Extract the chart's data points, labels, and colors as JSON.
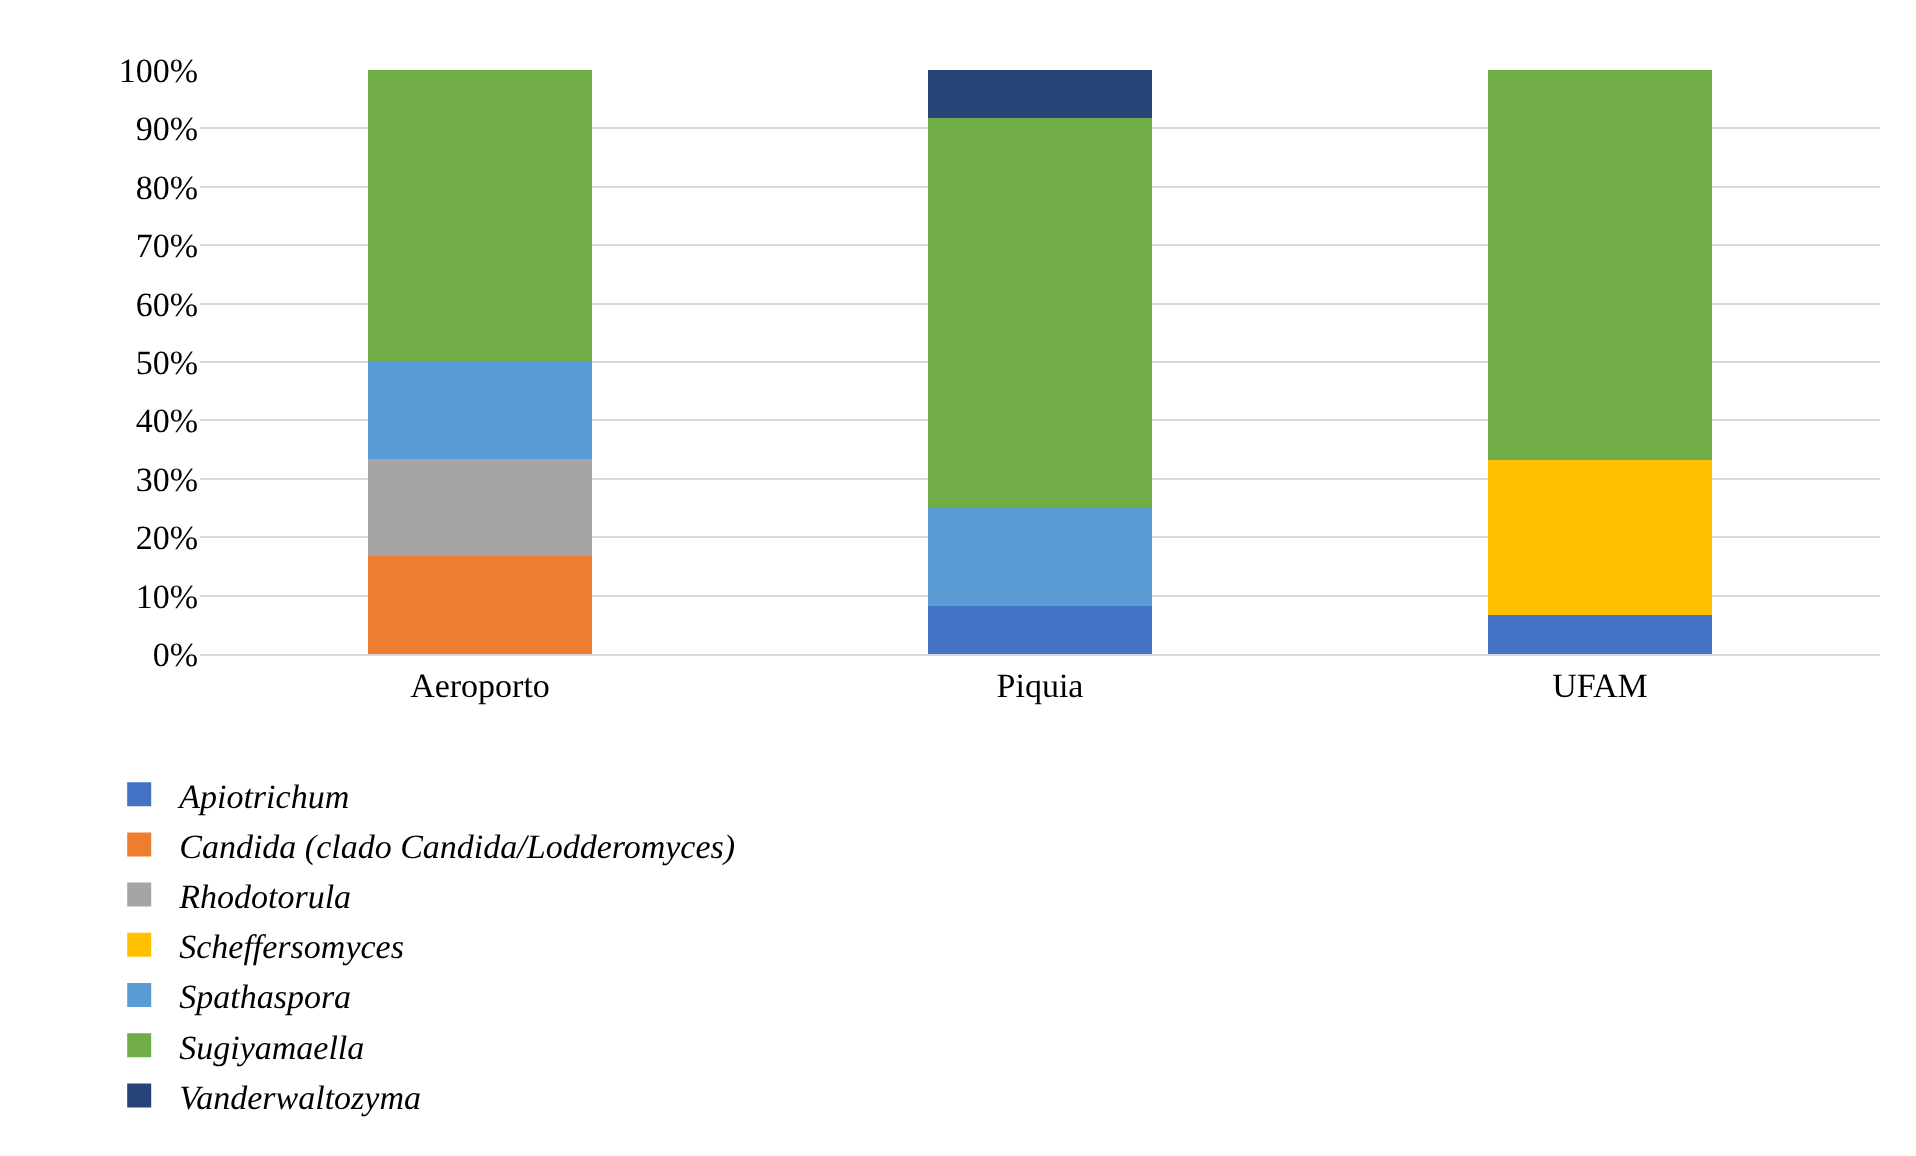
{
  "chart_data": {
    "type": "bar",
    "stacked": true,
    "categories": [
      "Aeroporto",
      "Piquia",
      "UFAM"
    ],
    "series": [
      {
        "name": "Apiotrichum",
        "color": "#4472c4",
        "values": [
          null,
          8.3,
          6.7
        ]
      },
      {
        "name": "Candida (clado Candida/Lodderomyces)",
        "color": "#ed7d31",
        "values": [
          16.7,
          null,
          null
        ]
      },
      {
        "name": "Rhodotorula",
        "color": "#a5a5a5",
        "values": [
          16.7,
          null,
          null
        ]
      },
      {
        "name": "Scheffersomyces",
        "color": "#ffc000",
        "values": [
          null,
          null,
          26.6
        ]
      },
      {
        "name": "Spathaspora",
        "color": "#5b9bd5",
        "values": [
          16.6,
          16.7,
          null
        ]
      },
      {
        "name": "Sugiyamaella",
        "color": "#70ad47",
        "values": [
          50,
          66.7,
          66.7
        ]
      },
      {
        "name": "Vanderwaltozyma",
        "color": "#264478",
        "values": [
          null,
          8.3,
          null
        ]
      }
    ],
    "ylim": [
      0,
      100
    ],
    "yticks": [
      {
        "value": 0,
        "label": "0%"
      },
      {
        "value": 10,
        "label": "10%"
      },
      {
        "value": 20,
        "label": "20%"
      },
      {
        "value": 30,
        "label": "30%"
      },
      {
        "value": 40,
        "label": "40%"
      },
      {
        "value": 50,
        "label": "50%"
      },
      {
        "value": 60,
        "label": "60%"
      },
      {
        "value": 70,
        "label": "70%"
      },
      {
        "value": 80,
        "label": "80%"
      },
      {
        "value": 90,
        "label": "90%"
      },
      {
        "value": 100,
        "label": "100%"
      }
    ],
    "grid": "y",
    "legend": "bottom"
  }
}
